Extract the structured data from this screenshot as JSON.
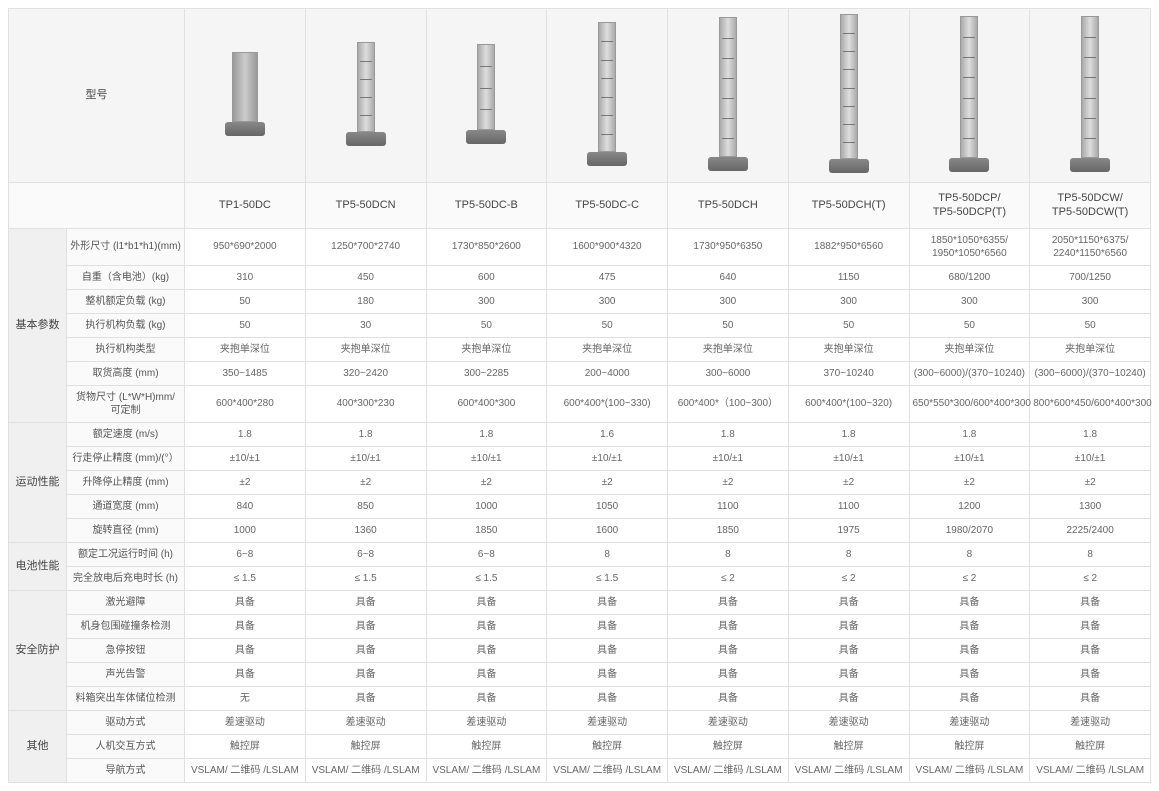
{
  "model_label": "型号",
  "models": [
    "TP1-50DC",
    "TP5-50DCN",
    "TP5-50DC-B",
    "TP5-50DC-C",
    "TP5-50DCH",
    "TP5-50DCH(T)",
    "TP5-50DCP/\nTP5-50DCP(T)",
    "TP5-50DCW/\nTP5-50DCW(T)"
  ],
  "robot_heights": [
    70,
    90,
    86,
    130,
    140,
    145,
    142,
    142
  ],
  "robot_solid": [
    true,
    false,
    false,
    false,
    false,
    false,
    false,
    false
  ],
  "groups": [
    {
      "name": "基本参数",
      "rows": [
        {
          "param": "外形尺寸 (l1*b1*h1)(mm)",
          "vals": [
            "950*690*2000",
            "1250*700*2740",
            "1730*850*2600",
            "1600*900*4320",
            "1730*950*6350",
            "1882*950*6560",
            "1850*1050*6355/\n1950*1050*6560",
            "2050*1150*6375/\n2240*1150*6560"
          ]
        },
        {
          "param": "自重（含电池）(kg)",
          "vals": [
            "310",
            "450",
            "600",
            "475",
            "640",
            "1150",
            "680/1200",
            "700/1250"
          ]
        },
        {
          "param": "整机额定负载 (kg)",
          "vals": [
            "50",
            "180",
            "300",
            "300",
            "300",
            "300",
            "300",
            "300"
          ]
        },
        {
          "param": "执行机构负载 (kg)",
          "vals": [
            "50",
            "30",
            "50",
            "50",
            "50",
            "50",
            "50",
            "50"
          ]
        },
        {
          "param": "执行机构类型",
          "vals": [
            "夹抱单深位",
            "夹抱单深位",
            "夹抱单深位",
            "夹抱单深位",
            "夹抱单深位",
            "夹抱单深位",
            "夹抱单深位",
            "夹抱单深位"
          ]
        },
        {
          "param": "取货高度 (mm)",
          "vals": [
            "350~1485",
            "320~2420",
            "300~2285",
            "200~4000",
            "300~6000",
            "370~10240",
            "(300~6000)/(370~10240)",
            "(300~6000)/(370~10240)"
          ]
        },
        {
          "param": "货物尺寸 (L*W*H)mm/ 可定制",
          "vals": [
            "600*400*280",
            "400*300*230",
            "600*400*300",
            "600*400*(100~330)",
            "600*400*（100~300）",
            "600*400*(100~320)",
            "650*550*300/600*400*300",
            "800*600*450/600*400*300"
          ]
        }
      ]
    },
    {
      "name": "运动性能",
      "rows": [
        {
          "param": "额定速度 (m/s)",
          "vals": [
            "1.8",
            "1.8",
            "1.8",
            "1.6",
            "1.8",
            "1.8",
            "1.8",
            "1.8"
          ]
        },
        {
          "param": "行走停止精度 (mm)/(°）",
          "vals": [
            "±10/±1",
            "±10/±1",
            "±10/±1",
            "±10/±1",
            "±10/±1",
            "±10/±1",
            "±10/±1",
            "±10/±1"
          ]
        },
        {
          "param": "升降停止精度 (mm)",
          "vals": [
            "±2",
            "±2",
            "±2",
            "±2",
            "±2",
            "±2",
            "±2",
            "±2"
          ]
        },
        {
          "param": "通道宽度 (mm)",
          "vals": [
            "840",
            "850",
            "1000",
            "1050",
            "1100",
            "1100",
            "1200",
            "1300"
          ]
        },
        {
          "param": "旋转直径 (mm)",
          "vals": [
            "1000",
            "1360",
            "1850",
            "1600",
            "1850",
            "1975",
            "1980/2070",
            "2225/2400"
          ]
        }
      ]
    },
    {
      "name": "电池性能",
      "rows": [
        {
          "param": "额定工况运行时间 (h)",
          "vals": [
            "6~8",
            "6~8",
            "6~8",
            "8",
            "8",
            "8",
            "8",
            "8"
          ]
        },
        {
          "param": "完全放电后充电时长 (h)",
          "vals": [
            "≤ 1.5",
            "≤ 1.5",
            "≤ 1.5",
            "≤ 1.5",
            "≤ 2",
            "≤ 2",
            "≤ 2",
            "≤ 2"
          ]
        }
      ]
    },
    {
      "name": "安全防护",
      "rows": [
        {
          "param": "激光避障",
          "vals": [
            "具备",
            "具备",
            "具备",
            "具备",
            "具备",
            "具备",
            "具备",
            "具备"
          ]
        },
        {
          "param": "机身包围碰撞条检测",
          "vals": [
            "具备",
            "具备",
            "具备",
            "具备",
            "具备",
            "具备",
            "具备",
            "具备"
          ]
        },
        {
          "param": "急停按钮",
          "vals": [
            "具备",
            "具备",
            "具备",
            "具备",
            "具备",
            "具备",
            "具备",
            "具备"
          ]
        },
        {
          "param": "声光告警",
          "vals": [
            "具备",
            "具备",
            "具备",
            "具备",
            "具备",
            "具备",
            "具备",
            "具备"
          ]
        },
        {
          "param": "料箱突出车体储位检测",
          "vals": [
            "无",
            "具备",
            "具备",
            "具备",
            "具备",
            "具备",
            "具备",
            "具备"
          ]
        }
      ]
    },
    {
      "name": "其他",
      "rows": [
        {
          "param": "驱动方式",
          "vals": [
            "差速驱动",
            "差速驱动",
            "差速驱动",
            "差速驱动",
            "差速驱动",
            "差速驱动",
            "差速驱动",
            "差速驱动"
          ]
        },
        {
          "param": "人机交互方式",
          "vals": [
            "触控屏",
            "触控屏",
            "触控屏",
            "触控屏",
            "触控屏",
            "触控屏",
            "触控屏",
            "触控屏"
          ]
        },
        {
          "param": "导航方式",
          "vals": [
            "VSLAM/ 二维码 /LSLAM",
            "VSLAM/ 二维码 /LSLAM",
            "VSLAM/ 二维码 /LSLAM",
            "VSLAM/ 二维码 /LSLAM",
            "VSLAM/ 二维码 /LSLAM",
            "VSLAM/ 二维码 /LSLAM",
            "VSLAM/ 二维码 /LSLAM",
            "VSLAM/ 二维码 /LSLAM"
          ]
        }
      ]
    }
  ]
}
